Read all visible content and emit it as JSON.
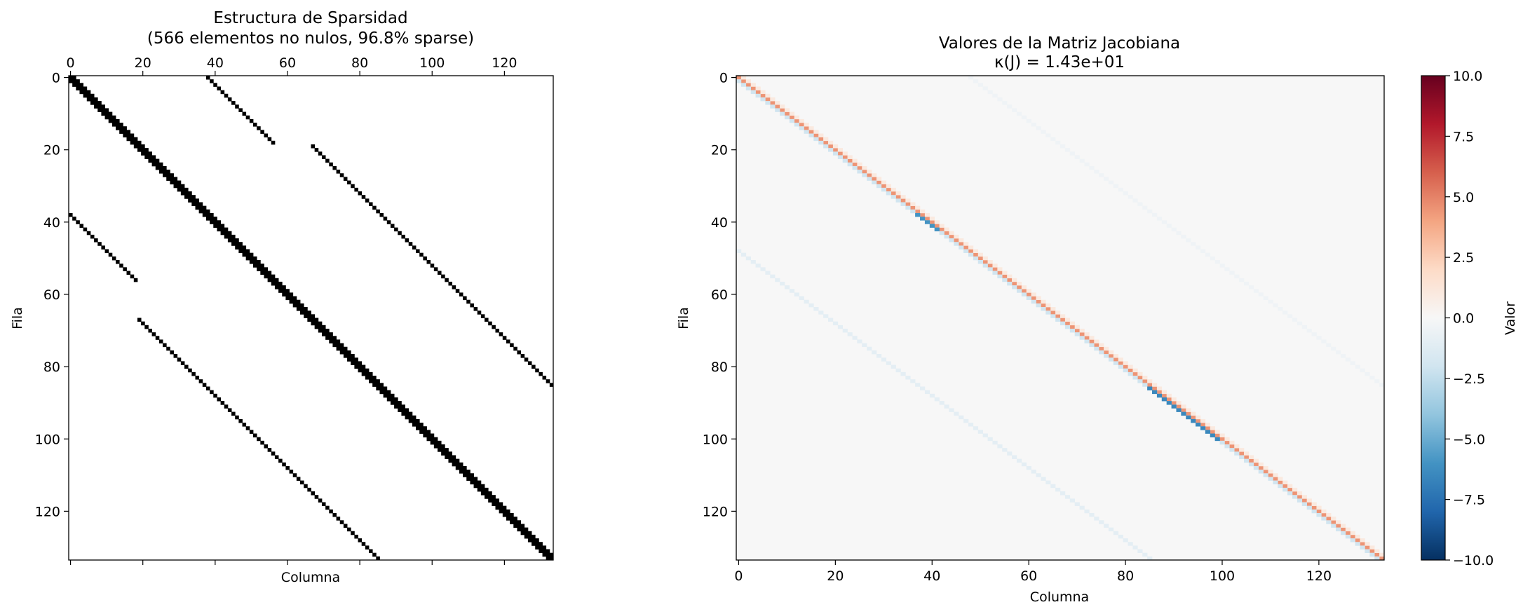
{
  "chart_data": [
    {
      "type": "heatmap",
      "variant": "sparsity-pattern",
      "title": "Estructura de Sparsidad",
      "subtitle": "(566 elementos no nulos, 96.8% sparse)",
      "xlabel": "Columna",
      "ylabel": "Fila",
      "x_ticks_position": "top",
      "x_ticks": [
        "0",
        "20",
        "40",
        "60",
        "80",
        "100",
        "120"
      ],
      "y_ticks": [
        "0",
        "20",
        "40",
        "60",
        "80",
        "100",
        "120"
      ],
      "n_rows": 134,
      "n_cols": 134,
      "nonzero_color": "#000000",
      "background_color": "#ffffff",
      "bands": [
        {
          "name": "main-diagonal",
          "row_start": 0,
          "row_end": 133,
          "col_offset": 0,
          "halfwidth": 1
        },
        {
          "name": "upper-band-a",
          "row_start": 0,
          "row_end": 18,
          "col_offset": 38,
          "halfwidth": 0
        },
        {
          "name": "upper-band-b",
          "row_start": 19,
          "row_end": 85,
          "col_offset": 48,
          "halfwidth": 0
        },
        {
          "name": "lower-band-a",
          "row_start": 38,
          "row_end": 56,
          "col_offset": -38,
          "halfwidth": 0
        },
        {
          "name": "lower-band-b",
          "row_start": 67,
          "row_end": 133,
          "col_offset": -48,
          "halfwidth": 0
        }
      ]
    },
    {
      "type": "heatmap",
      "variant": "values",
      "title": "Valores de la Matriz Jacobiana",
      "subtitle": "κ(J) = 1.43e+01",
      "xlabel": "Columna",
      "ylabel": "Fila",
      "x_ticks": [
        "0",
        "20",
        "40",
        "60",
        "80",
        "100",
        "120"
      ],
      "y_ticks": [
        "0",
        "20",
        "40",
        "60",
        "80",
        "100",
        "120"
      ],
      "n_rows": 134,
      "n_cols": 134,
      "colormap": "RdBu_r",
      "vmin": -10.0,
      "vmax": 10.0,
      "colorbar_label": "Valor",
      "colorbar_ticks": [
        "10.0",
        "7.5",
        "5.0",
        "2.5",
        "0.0",
        "−2.5",
        "−5.0",
        "−7.5",
        "−10.0"
      ],
      "background_value": 0.0,
      "value_bands": [
        {
          "name": "diagonal",
          "col_offset": 0,
          "value": 4.5
        },
        {
          "name": "sub-diagonal",
          "col_offset": -1,
          "value": -2.0
        },
        {
          "name": "super-diagonal",
          "col_offset": 1,
          "value": 1.0
        },
        {
          "name": "blocks-38-40",
          "row_start": 38,
          "row_end": 42,
          "col_offset": -1,
          "value": -6.0
        },
        {
          "name": "blocks-86-100",
          "row_start": 86,
          "row_end": 100,
          "col_offset": -1,
          "value": -6.5
        },
        {
          "name": "upper-coupling",
          "col_offset": 48,
          "value": -0.4
        },
        {
          "name": "lower-coupling",
          "col_offset": -48,
          "value": -1.0
        }
      ]
    }
  ]
}
